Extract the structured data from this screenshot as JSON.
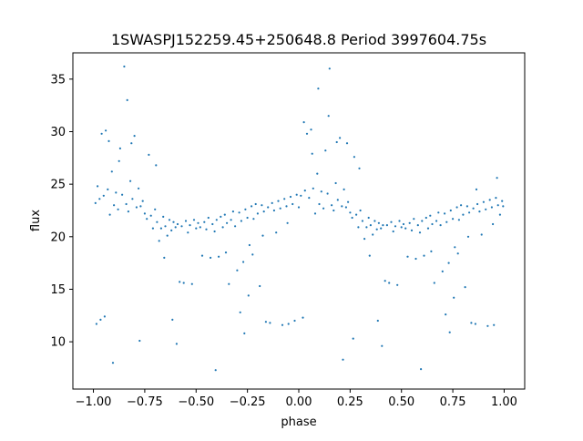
{
  "chart_data": {
    "type": "scatter",
    "title": "1SWASPJ152259.45+250648.8 Period 3997604.75s",
    "xlabel": "phase",
    "ylabel": "flux",
    "xlim": [
      -1.1,
      1.1
    ],
    "ylim": [
      5.5,
      37.5
    ],
    "xticks": [
      -1.0,
      -0.75,
      -0.5,
      -0.25,
      0.0,
      0.25,
      0.5,
      0.75,
      1.0
    ],
    "xtick_labels": [
      "−1.00",
      "−0.75",
      "−0.50",
      "−0.25",
      "0.00",
      "0.25",
      "0.50",
      "0.75",
      "1.00"
    ],
    "yticks": [
      10,
      15,
      20,
      25,
      30,
      35
    ],
    "ytick_labels": [
      "10",
      "15",
      "20",
      "25",
      "30",
      "35"
    ],
    "grid": false,
    "legend": "none",
    "marker_color": "#1f77b4",
    "series": [
      {
        "values": [
          [
            -0.99,
            23.2
          ],
          [
            -0.98,
            24.8
          ],
          [
            -0.97,
            23.6
          ],
          [
            -0.96,
            29.8
          ],
          [
            -0.95,
            23.9
          ],
          [
            -0.94,
            30.1
          ],
          [
            -0.93,
            24.5
          ],
          [
            -0.92,
            22.1
          ],
          [
            -0.91,
            26.2
          ],
          [
            -0.9,
            23.0
          ],
          [
            -0.89,
            24.2
          ],
          [
            -0.88,
            22.6
          ],
          [
            -0.87,
            28.4
          ],
          [
            -0.86,
            24.0
          ],
          [
            -0.85,
            36.2
          ],
          [
            -0.84,
            23.1
          ],
          [
            -0.83,
            22.4
          ],
          [
            -0.82,
            25.3
          ],
          [
            -0.81,
            23.6
          ],
          [
            -0.8,
            29.6
          ],
          [
            -0.79,
            22.8
          ],
          [
            -0.78,
            24.6
          ],
          [
            -0.77,
            22.9
          ],
          [
            -0.76,
            23.4
          ],
          [
            -0.75,
            22.2
          ],
          [
            -0.74,
            21.7
          ],
          [
            -0.73,
            27.8
          ],
          [
            -0.72,
            22.0
          ],
          [
            -0.71,
            20.8
          ],
          [
            -0.7,
            22.6
          ],
          [
            -0.69,
            21.4
          ],
          [
            -0.68,
            19.6
          ],
          [
            -0.67,
            20.8
          ],
          [
            -0.66,
            21.9
          ],
          [
            -0.65,
            21.0
          ],
          [
            -0.64,
            20.1
          ],
          [
            -0.63,
            21.6
          ],
          [
            -0.62,
            20.6
          ],
          [
            -0.61,
            21.4
          ],
          [
            -0.6,
            20.9
          ],
          [
            -0.59,
            21.2
          ],
          [
            -0.58,
            15.7
          ],
          [
            -0.57,
            21.0
          ],
          [
            -0.56,
            15.6
          ],
          [
            -0.55,
            21.5
          ],
          [
            -0.54,
            20.4
          ],
          [
            -0.53,
            21.1
          ],
          [
            -0.52,
            15.5
          ],
          [
            -0.51,
            21.6
          ],
          [
            -0.5,
            20.8
          ],
          [
            -0.49,
            21.3
          ],
          [
            -0.48,
            20.9
          ],
          [
            -0.47,
            18.2
          ],
          [
            -0.46,
            21.4
          ],
          [
            -0.45,
            20.7
          ],
          [
            -0.44,
            21.8
          ],
          [
            -0.43,
            18.0
          ],
          [
            -0.42,
            21.2
          ],
          [
            -0.41,
            20.5
          ],
          [
            -0.4,
            21.6
          ],
          [
            -0.39,
            18.1
          ],
          [
            -0.38,
            21.9
          ],
          [
            -0.37,
            20.9
          ],
          [
            -0.36,
            22.1
          ],
          [
            -0.35,
            21.3
          ],
          [
            -0.34,
            15.5
          ],
          [
            -0.33,
            21.6
          ],
          [
            -0.32,
            22.4
          ],
          [
            -0.31,
            21.0
          ],
          [
            -0.3,
            16.8
          ],
          [
            -0.29,
            22.3
          ],
          [
            -0.28,
            21.5
          ],
          [
            -0.27,
            17.6
          ],
          [
            -0.26,
            22.6
          ],
          [
            -0.25,
            21.8
          ],
          [
            -0.24,
            19.2
          ],
          [
            -0.23,
            22.9
          ],
          [
            -0.22,
            21.7
          ],
          [
            -0.21,
            23.1
          ],
          [
            -0.2,
            22.2
          ],
          [
            -0.19,
            15.3
          ],
          [
            -0.18,
            23.0
          ],
          [
            -0.17,
            22.4
          ],
          [
            -0.16,
            11.9
          ],
          [
            -0.15,
            22.8
          ],
          [
            -0.14,
            11.8
          ],
          [
            -0.13,
            23.2
          ],
          [
            -0.12,
            22.5
          ],
          [
            -0.11,
            20.4
          ],
          [
            -0.1,
            23.4
          ],
          [
            -0.09,
            22.7
          ],
          [
            -0.08,
            11.6
          ],
          [
            -0.07,
            23.6
          ],
          [
            -0.06,
            22.9
          ],
          [
            -0.05,
            11.7
          ],
          [
            -0.04,
            23.8
          ],
          [
            -0.03,
            23.1
          ],
          [
            -0.02,
            12.0
          ],
          [
            -0.01,
            24.0
          ],
          [
            0.0,
            22.8
          ],
          [
            0.01,
            23.9
          ],
          [
            0.02,
            12.3
          ],
          [
            0.03,
            24.4
          ],
          [
            0.04,
            29.8
          ],
          [
            0.05,
            23.7
          ],
          [
            0.06,
            30.2
          ],
          [
            0.07,
            24.6
          ],
          [
            0.08,
            22.2
          ],
          [
            0.09,
            26.0
          ],
          [
            0.1,
            23.1
          ],
          [
            0.11,
            24.3
          ],
          [
            0.12,
            22.7
          ],
          [
            0.13,
            28.2
          ],
          [
            0.14,
            24.1
          ],
          [
            0.15,
            36.0
          ],
          [
            0.16,
            23.0
          ],
          [
            0.17,
            22.5
          ],
          [
            0.18,
            25.1
          ],
          [
            0.19,
            23.5
          ],
          [
            0.2,
            29.4
          ],
          [
            0.21,
            22.9
          ],
          [
            0.22,
            24.5
          ],
          [
            0.23,
            22.8
          ],
          [
            0.24,
            23.3
          ],
          [
            0.25,
            22.3
          ],
          [
            0.26,
            21.8
          ],
          [
            0.27,
            27.6
          ],
          [
            0.28,
            22.1
          ],
          [
            0.29,
            20.9
          ],
          [
            0.3,
            22.5
          ],
          [
            0.31,
            21.5
          ],
          [
            0.32,
            19.8
          ],
          [
            0.33,
            20.9
          ],
          [
            0.34,
            21.8
          ],
          [
            0.35,
            21.1
          ],
          [
            0.36,
            20.2
          ],
          [
            0.37,
            21.5
          ],
          [
            0.38,
            20.7
          ],
          [
            0.39,
            21.3
          ],
          [
            0.4,
            20.8
          ],
          [
            0.41,
            21.1
          ],
          [
            0.42,
            15.8
          ],
          [
            0.43,
            21.1
          ],
          [
            0.44,
            15.6
          ],
          [
            0.45,
            21.4
          ],
          [
            0.46,
            20.5
          ],
          [
            0.47,
            21.0
          ],
          [
            0.48,
            15.4
          ],
          [
            0.49,
            21.5
          ],
          [
            0.5,
            20.9
          ],
          [
            0.51,
            21.2
          ],
          [
            0.52,
            20.8
          ],
          [
            0.53,
            18.1
          ],
          [
            0.54,
            21.3
          ],
          [
            0.55,
            20.6
          ],
          [
            0.56,
            21.7
          ],
          [
            0.57,
            17.9
          ],
          [
            0.58,
            21.1
          ],
          [
            0.59,
            20.4
          ],
          [
            0.6,
            21.5
          ],
          [
            0.61,
            18.2
          ],
          [
            0.62,
            21.8
          ],
          [
            0.63,
            20.8
          ],
          [
            0.64,
            22.0
          ],
          [
            0.65,
            21.2
          ],
          [
            0.66,
            15.6
          ],
          [
            0.67,
            21.5
          ],
          [
            0.68,
            22.3
          ],
          [
            0.69,
            21.1
          ],
          [
            0.7,
            16.7
          ],
          [
            0.71,
            22.2
          ],
          [
            0.72,
            21.4
          ],
          [
            0.73,
            17.5
          ],
          [
            0.74,
            22.5
          ],
          [
            0.75,
            21.7
          ],
          [
            0.76,
            19.0
          ],
          [
            0.77,
            22.8
          ],
          [
            0.78,
            21.6
          ],
          [
            0.79,
            23.0
          ],
          [
            0.8,
            22.1
          ],
          [
            0.81,
            15.2
          ],
          [
            0.82,
            22.9
          ],
          [
            0.83,
            22.3
          ],
          [
            0.84,
            11.8
          ],
          [
            0.85,
            22.7
          ],
          [
            0.86,
            11.7
          ],
          [
            0.87,
            23.1
          ],
          [
            0.88,
            22.4
          ],
          [
            0.89,
            20.2
          ],
          [
            0.9,
            23.3
          ],
          [
            0.91,
            22.6
          ],
          [
            0.92,
            11.5
          ],
          [
            0.93,
            23.5
          ],
          [
            0.94,
            22.8
          ],
          [
            0.95,
            11.6
          ],
          [
            0.96,
            23.7
          ],
          [
            0.97,
            23.0
          ],
          [
            0.98,
            22.1
          ],
          [
            0.99,
            23.4
          ],
          [
            -0.985,
            11.7
          ],
          [
            -0.965,
            12.1
          ],
          [
            -0.945,
            12.4
          ],
          [
            -0.925,
            29.1
          ],
          [
            -0.905,
            8.0
          ],
          [
            -0.875,
            27.2
          ],
          [
            -0.835,
            33.0
          ],
          [
            -0.815,
            28.9
          ],
          [
            -0.775,
            10.1
          ],
          [
            -0.695,
            26.8
          ],
          [
            -0.655,
            18.0
          ],
          [
            -0.615,
            12.1
          ],
          [
            -0.595,
            9.8
          ],
          [
            -0.405,
            7.3
          ],
          [
            -0.355,
            18.5
          ],
          [
            -0.285,
            12.8
          ],
          [
            -0.265,
            10.8
          ],
          [
            -0.245,
            14.4
          ],
          [
            -0.225,
            18.3
          ],
          [
            -0.175,
            20.1
          ],
          [
            -0.055,
            21.3
          ],
          [
            0.025,
            30.9
          ],
          [
            0.065,
            27.9
          ],
          [
            0.095,
            34.1
          ],
          [
            0.145,
            31.5
          ],
          [
            0.185,
            29.0
          ],
          [
            0.215,
            8.3
          ],
          [
            0.235,
            28.9
          ],
          [
            0.265,
            10.3
          ],
          [
            0.295,
            26.5
          ],
          [
            0.345,
            18.2
          ],
          [
            0.385,
            12.0
          ],
          [
            0.405,
            9.6
          ],
          [
            0.595,
            7.4
          ],
          [
            0.645,
            18.6
          ],
          [
            0.715,
            12.6
          ],
          [
            0.735,
            10.9
          ],
          [
            0.755,
            14.2
          ],
          [
            0.775,
            18.4
          ],
          [
            0.825,
            20.0
          ],
          [
            0.865,
            24.5
          ],
          [
            0.945,
            21.2
          ],
          [
            0.965,
            25.6
          ],
          [
            0.995,
            22.9
          ]
        ]
      }
    ]
  }
}
